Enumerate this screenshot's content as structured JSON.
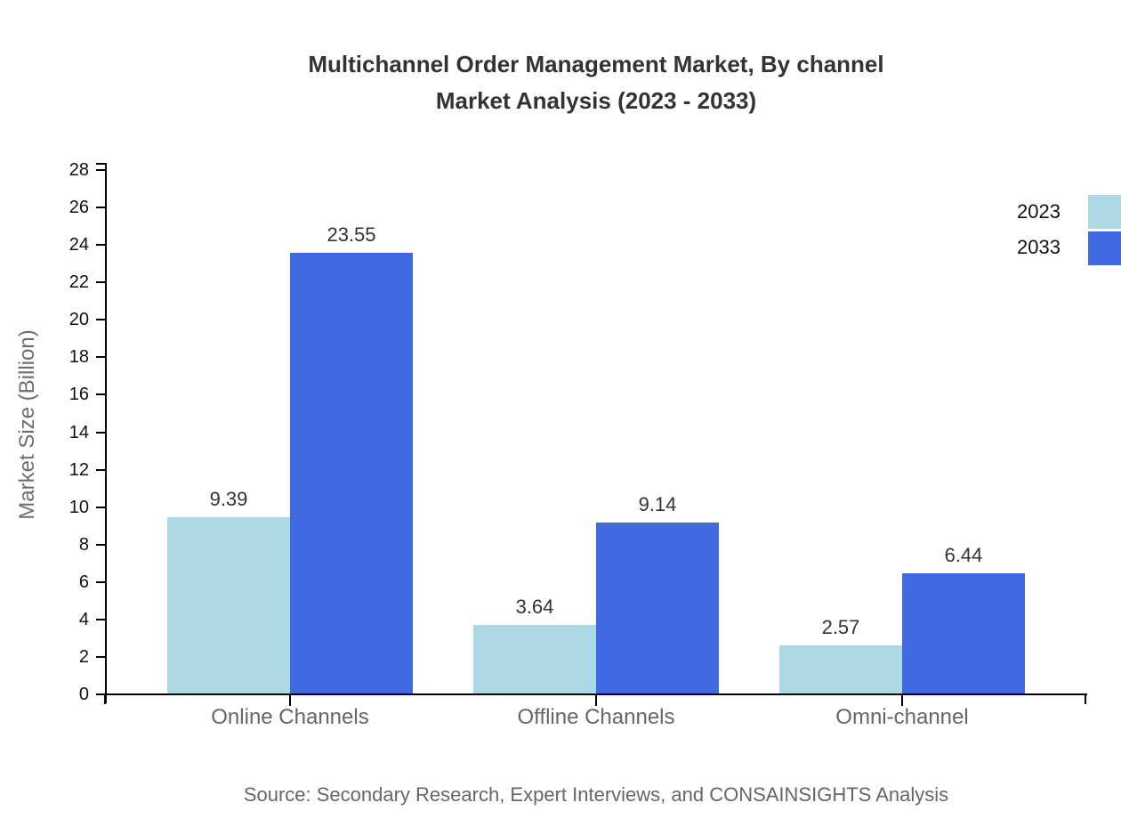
{
  "title": {
    "line1": "Multichannel Order Management Market, By channel",
    "line2": "Market Analysis (2023 - 2033)"
  },
  "source": "Source: Secondary Research, Expert Interviews, and CONSAINSIGHTS Analysis",
  "chart_data": {
    "type": "bar",
    "categories": [
      "Online Channels",
      "Offline Channels",
      "Omni-channel"
    ],
    "series": [
      {
        "name": "2023",
        "color": "#ADD8E6",
        "values": [
          9.39,
          3.64,
          2.57
        ]
      },
      {
        "name": "2033",
        "color": "#4169E1",
        "values": [
          23.55,
          9.14,
          6.44
        ]
      }
    ],
    "title": "Multichannel Order Management Market, By channel Market Analysis (2023 - 2033)",
    "xlabel": "",
    "ylabel": "Market Size (Billion)",
    "ylim": [
      0,
      28
    ],
    "yticks": [
      0,
      2,
      4,
      6,
      8,
      10,
      12,
      14,
      16,
      18,
      20,
      22,
      24,
      26,
      28
    ],
    "grid": false,
    "value_labels": true,
    "legend_position": "top-right",
    "axis_color": "#000000"
  }
}
